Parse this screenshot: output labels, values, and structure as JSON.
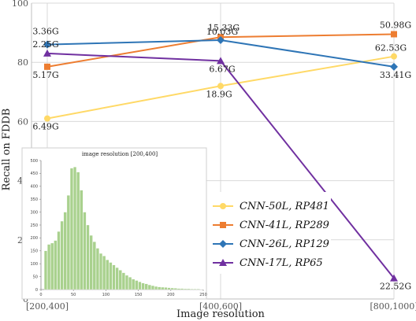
{
  "chart_data": [
    {
      "type": "line",
      "categories": [
        "[200,400]",
        "[400,600]",
        "[800,1000]"
      ],
      "xlabel": "Image resolution",
      "ylabel": "Recall on FDDB",
      "ylim": [
        0,
        100
      ],
      "yticks": [
        "0",
        "20",
        "40",
        "60",
        "80",
        "100"
      ],
      "grid": true,
      "legend": "bottom-right",
      "series": [
        {
          "name": "CNN-50L, RP481",
          "color": "#FFD966",
          "marker": "circle",
          "values": [
            61,
            72,
            82
          ],
          "labels": [
            "6.49G",
            "18.9G",
            "62.53G"
          ]
        },
        {
          "name": "CNN-41L, RP289",
          "color": "#ED7D31",
          "marker": "square",
          "values": [
            78.5,
            88.5,
            89.5
          ],
          "labels": [
            "5.17G",
            "15.33G",
            "50.98G"
          ]
        },
        {
          "name": "CNN-26L, RP129",
          "color": "#2E75B6",
          "marker": "diamond",
          "values": [
            86,
            87.5,
            78.5
          ],
          "labels": [
            "3.36G",
            "10.03G",
            "33.41G"
          ]
        },
        {
          "name": "CNN-17L, RP65",
          "color": "#7030A0",
          "marker": "triangle",
          "values": [
            83,
            80.5,
            7
          ],
          "labels": [
            "2.25G",
            "6.67G",
            "22.52G"
          ]
        }
      ]
    },
    {
      "type": "bar",
      "title": "image resolution [200,400]",
      "xlim": [
        0,
        250
      ],
      "ylim": [
        0,
        500
      ],
      "xticks": [
        "0",
        "50",
        "100",
        "150",
        "200",
        "250"
      ],
      "yticks": [
        "0",
        "50",
        "100",
        "150",
        "200",
        "250",
        "300",
        "350",
        "400",
        "450",
        "500"
      ],
      "color": "#A9D18E",
      "bin_width": 5,
      "bin_start": 5,
      "values": [
        150,
        175,
        180,
        190,
        225,
        265,
        300,
        365,
        470,
        475,
        455,
        385,
        300,
        250,
        210,
        185,
        160,
        140,
        130,
        115,
        105,
        95,
        85,
        75,
        65,
        55,
        48,
        40,
        35,
        30,
        25,
        22,
        18,
        15,
        12,
        10,
        9,
        8,
        7,
        6,
        5,
        4,
        4,
        3,
        3,
        2,
        2,
        2,
        1
      ]
    }
  ]
}
